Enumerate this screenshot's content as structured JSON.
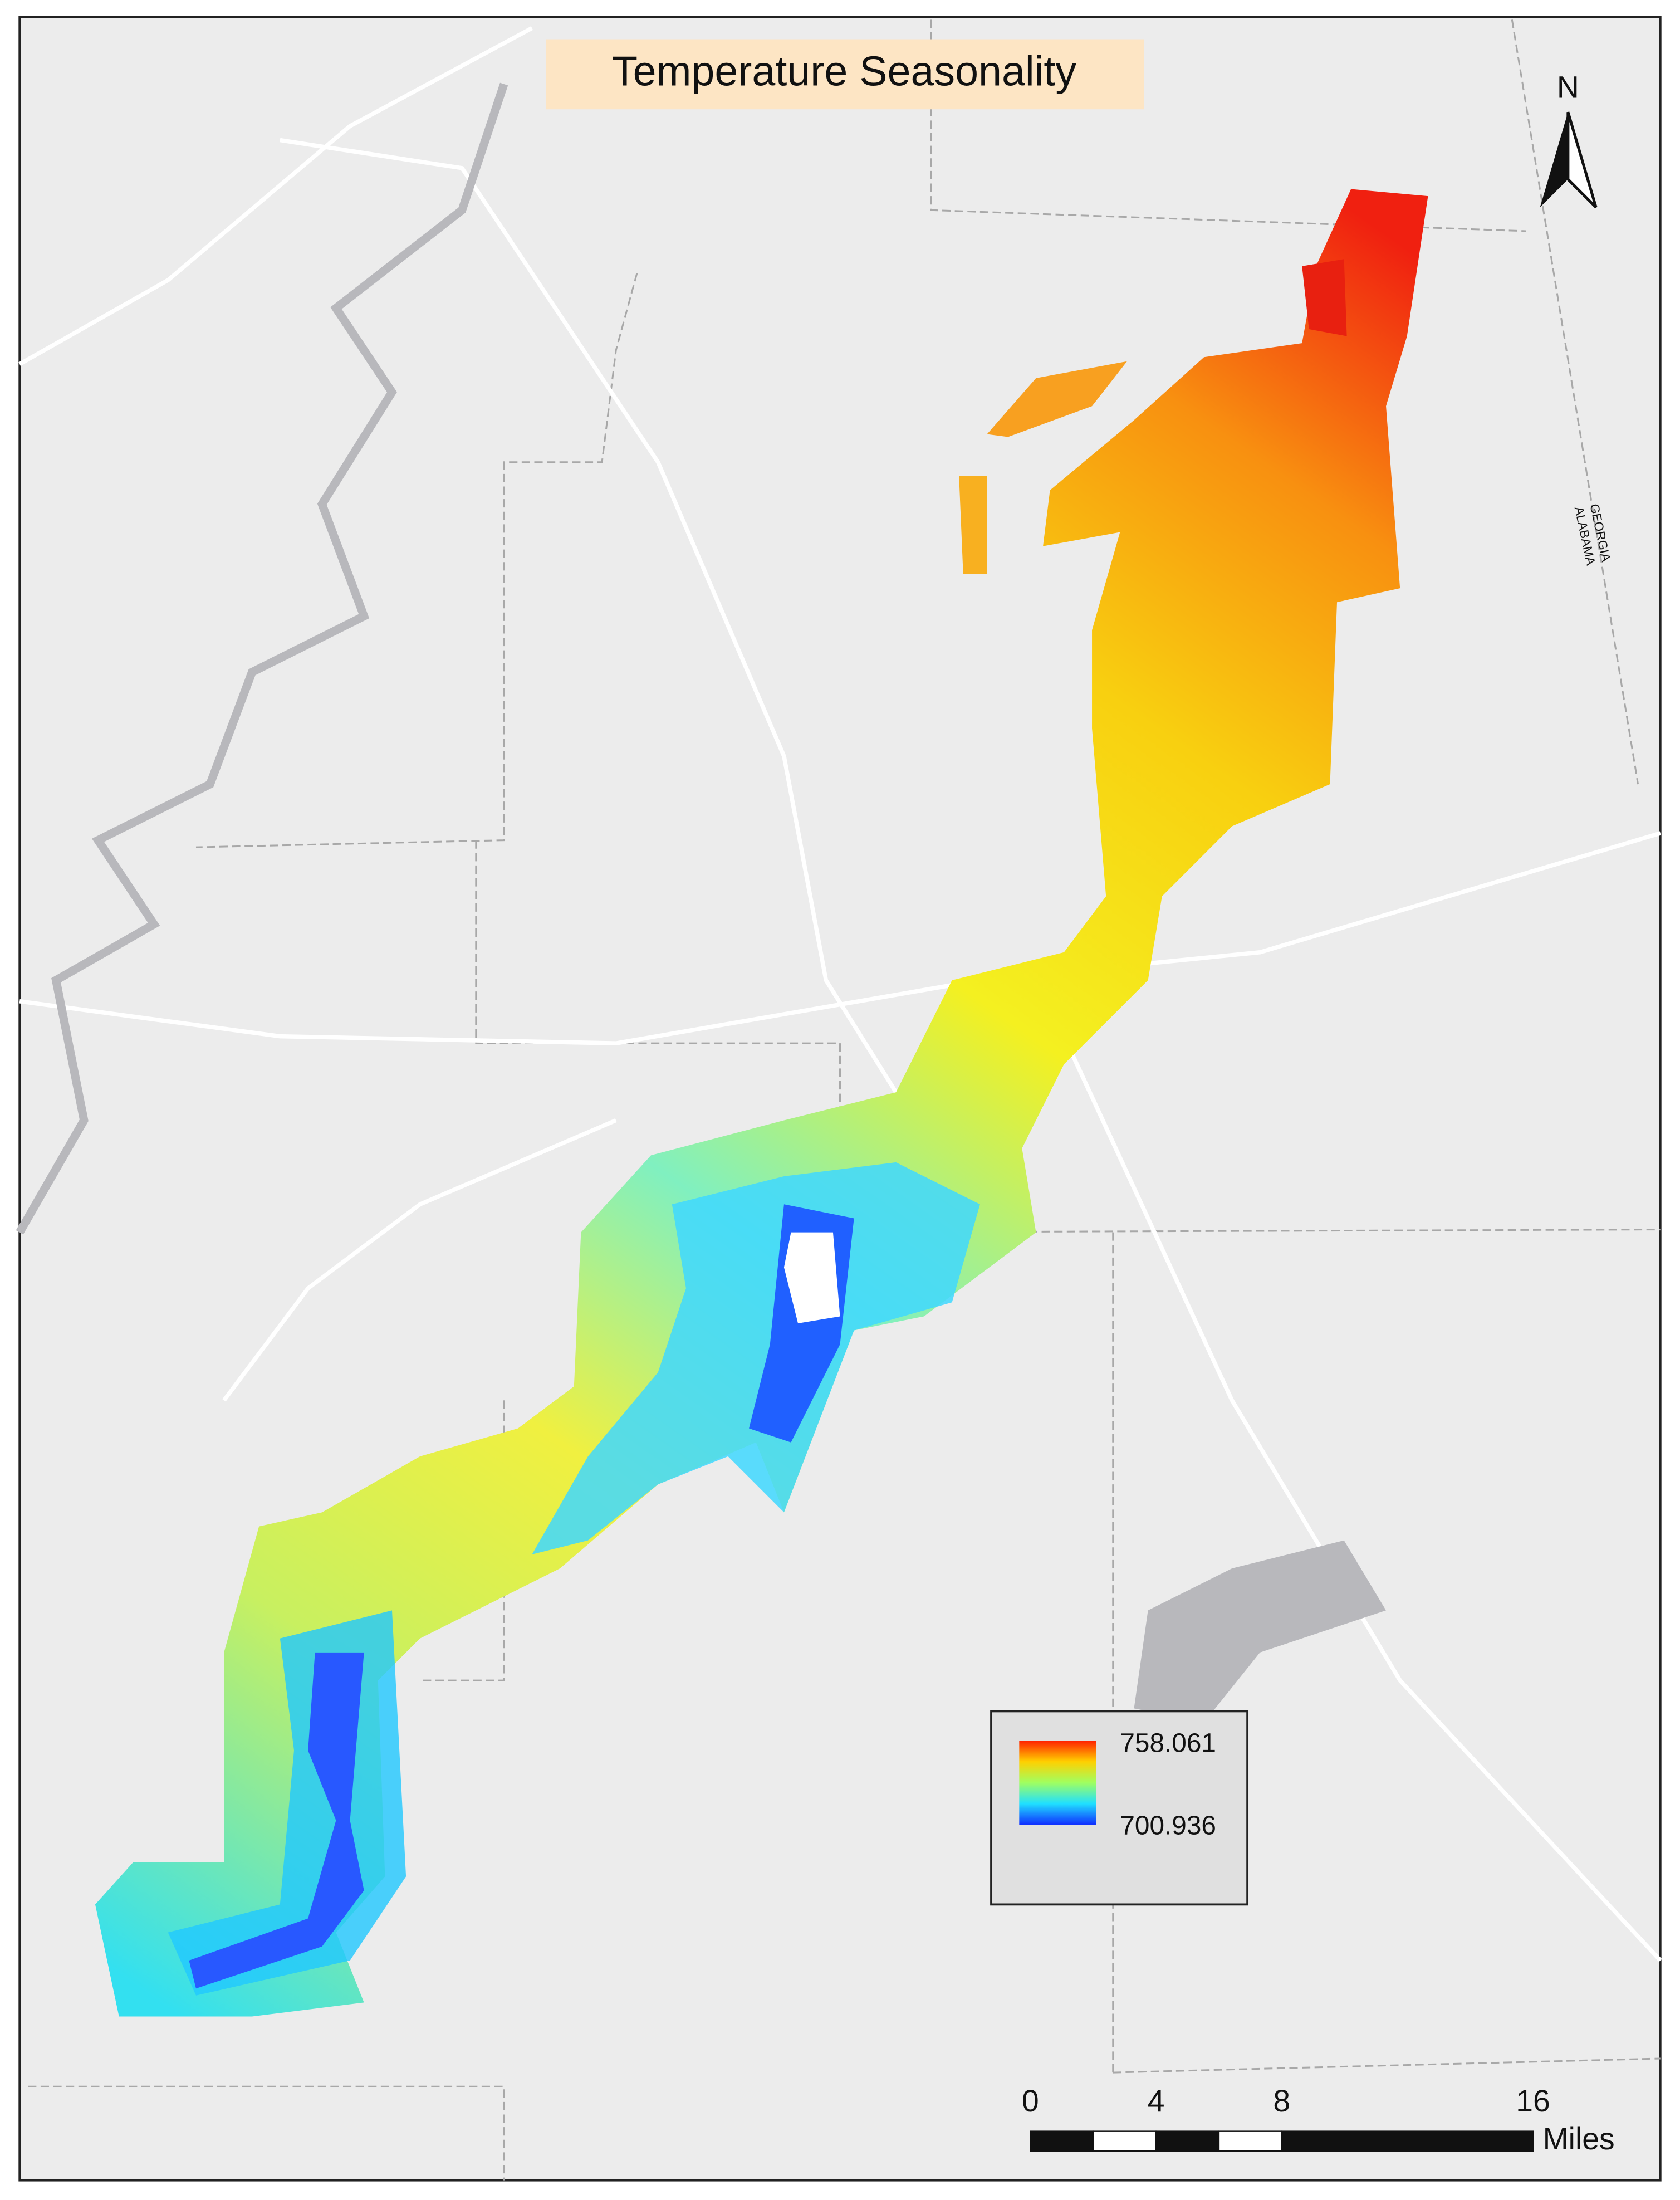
{
  "title": "Temperature Seasonality",
  "north_label": "N",
  "state_labels": [
    "GEORGIA",
    "ALABAMA"
  ],
  "legend": {
    "high_label": "758.061",
    "low_label": "700.936"
  },
  "scale_bar": {
    "ticks": [
      0,
      4,
      8,
      16
    ],
    "unit": "Miles"
  }
}
